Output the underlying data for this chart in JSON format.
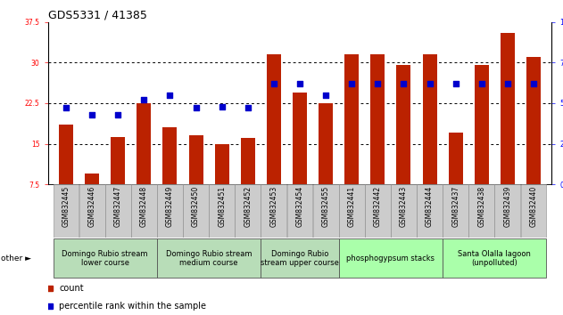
{
  "title": "GDS5331 / 41385",
  "samples": [
    "GSM832445",
    "GSM832446",
    "GSM832447",
    "GSM832448",
    "GSM832449",
    "GSM832450",
    "GSM832451",
    "GSM832452",
    "GSM832453",
    "GSM832454",
    "GSM832455",
    "GSM832441",
    "GSM832442",
    "GSM832443",
    "GSM832444",
    "GSM832437",
    "GSM832438",
    "GSM832439",
    "GSM832440"
  ],
  "count_values": [
    18.5,
    9.5,
    16.2,
    22.5,
    18.0,
    16.5,
    15.0,
    16.0,
    31.5,
    24.5,
    22.5,
    31.5,
    31.5,
    29.5,
    31.5,
    17.0,
    29.5,
    35.5,
    31.0
  ],
  "percentile_pct": [
    47,
    43,
    43,
    52,
    55,
    47,
    48,
    47,
    62,
    62,
    55,
    62,
    62,
    62,
    62,
    62,
    62,
    62,
    62
  ],
  "groups": [
    {
      "label": "Domingo Rubio stream\nlower course",
      "start": 0,
      "end": 4,
      "color": "#b8ddb8"
    },
    {
      "label": "Domingo Rubio stream\nmedium course",
      "start": 4,
      "end": 8,
      "color": "#b8ddb8"
    },
    {
      "label": "Domingo Rubio\nstream upper course",
      "start": 8,
      "end": 11,
      "color": "#b8ddb8"
    },
    {
      "label": "phosphogypsum stacks",
      "start": 11,
      "end": 15,
      "color": "#aaffaa"
    },
    {
      "label": "Santa Olalla lagoon\n(unpolluted)",
      "start": 15,
      "end": 19,
      "color": "#aaffaa"
    }
  ],
  "ylim_left": [
    7.5,
    37.5
  ],
  "ylim_right": [
    0,
    100
  ],
  "yticks_left": [
    7.5,
    15.0,
    22.5,
    30.0,
    37.5
  ],
  "yticks_right": [
    0,
    25,
    50,
    75,
    100
  ],
  "bar_color": "#bb2200",
  "dot_color": "#0000cc",
  "bg_fig": "#ffffff",
  "bg_plot": "#ffffff",
  "title_fontsize": 9,
  "tick_fontsize": 5.5,
  "label_fontsize": 6,
  "legend_fontsize": 7
}
